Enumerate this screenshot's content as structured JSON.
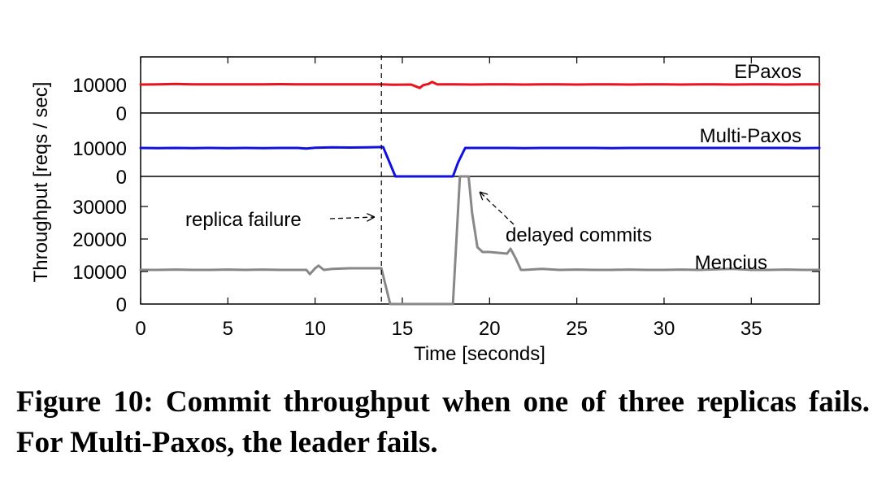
{
  "caption": "Figure 10:  Commit throughput when one of three replicas fails. For Multi-Paxos, the leader fails.",
  "chart_data": {
    "type": "line",
    "xlabel": "Time [seconds]",
    "ylabel": "Throughput [reqs / sec]",
    "xlim": [
      0,
      38.9
    ],
    "x_ticks": [
      0,
      5,
      10,
      15,
      20,
      25,
      30,
      35
    ],
    "grid": false,
    "panels": [
      {
        "name": "EPaxos",
        "color": "#e8141b",
        "ylim": [
          0,
          10000
        ],
        "y_ticks": [
          0,
          10000
        ],
        "x": [
          0,
          1,
          2,
          3,
          4,
          5,
          6,
          7,
          8,
          9,
          10,
          11,
          12,
          13,
          13.8,
          14.5,
          15.5,
          16,
          16.2,
          16.5,
          16.7,
          17,
          18,
          19,
          20,
          21,
          22,
          23,
          24,
          25,
          26,
          27,
          28,
          29,
          30,
          31,
          32,
          33,
          34,
          35,
          36,
          37,
          38,
          38.9
        ],
        "values": [
          10000,
          10100,
          10200,
          10100,
          10050,
          10100,
          10050,
          10100,
          10150,
          10100,
          10050,
          10100,
          10100,
          10050,
          10100,
          9900,
          10000,
          8800,
          9800,
          10200,
          10900,
          10100,
          10050,
          10000,
          10100,
          10050,
          10000,
          10100,
          10050,
          10000,
          10100,
          10050,
          10000,
          10100,
          10050,
          10000,
          10100,
          10050,
          10000,
          10100,
          10050,
          10000,
          10100,
          10050
        ]
      },
      {
        "name": "Multi-Paxos",
        "color": "#1010e0",
        "ylim": [
          0,
          10000
        ],
        "y_ticks": [
          0,
          10000
        ],
        "x": [
          0,
          1,
          2,
          3,
          4,
          5,
          6,
          7,
          8,
          9,
          9.5,
          10,
          11,
          12,
          13,
          13.9,
          14.6,
          15,
          16,
          17,
          17.9,
          18.2,
          18.6,
          19,
          20,
          21,
          22,
          23,
          24,
          25,
          26,
          27,
          28,
          29,
          30,
          31,
          32,
          33,
          34,
          35,
          36,
          37,
          38,
          38.9
        ],
        "values": [
          10000,
          9900,
          10000,
          9950,
          10000,
          9950,
          10000,
          9950,
          10000,
          10000,
          9800,
          10100,
          10200,
          10150,
          10200,
          10300,
          0,
          0,
          0,
          0,
          0,
          5000,
          10000,
          10000,
          10000,
          10000,
          9950,
          10000,
          10000,
          10000,
          10000,
          9950,
          10000,
          10000,
          10000,
          10000,
          10000,
          10000,
          10000,
          10000,
          10000,
          10000,
          9950,
          10000
        ]
      },
      {
        "name": "Mencius",
        "color": "#888888",
        "ylim": [
          0,
          38000
        ],
        "y_ticks": [
          0,
          10000,
          20000,
          30000
        ],
        "x": [
          0,
          1,
          2,
          3,
          4,
          5,
          6,
          7,
          8,
          9,
          9.5,
          9.7,
          10,
          10.2,
          10.5,
          11,
          12,
          13,
          13.8,
          14.3,
          15,
          16,
          17,
          17.9,
          18.3,
          18.5,
          18.8,
          19,
          19.3,
          19.6,
          20,
          21,
          21.2,
          21.5,
          21.8,
          22,
          23,
          24,
          25,
          26,
          27,
          28,
          29,
          30,
          31,
          32,
          33,
          34,
          35,
          36,
          37,
          38,
          38.9
        ],
        "values": [
          10500,
          10500,
          10600,
          10500,
          10500,
          10600,
          10500,
          10600,
          10500,
          10500,
          10500,
          9200,
          11000,
          11800,
          10500,
          10800,
          11000,
          11000,
          11000,
          0,
          0,
          0,
          0,
          0,
          43000,
          42000,
          41500,
          28000,
          17500,
          16000,
          16000,
          15500,
          17000,
          14000,
          10500,
          10500,
          10800,
          10500,
          10600,
          10500,
          10500,
          10600,
          10500,
          10500,
          10600,
          10500,
          10700,
          10800,
          10500,
          10500,
          10600,
          10500,
          10500
        ]
      }
    ],
    "annotations": [
      {
        "text": "replica failure",
        "x": 13.8
      },
      {
        "text": "delayed commits",
        "x": 18.6
      }
    ]
  }
}
